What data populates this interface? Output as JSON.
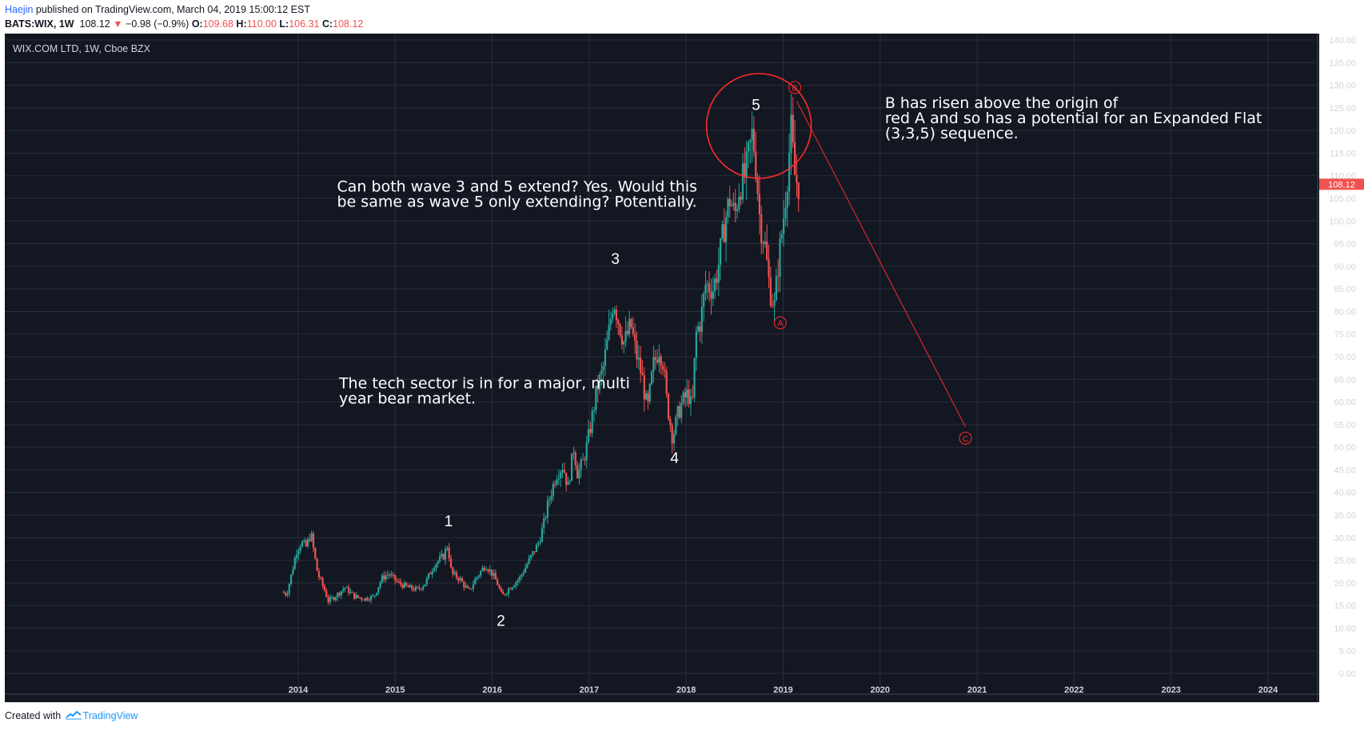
{
  "header": {
    "author": "Haejin",
    "published_text": " published on TradingView.com, March 04, 2019 15:00:12 EST",
    "symbol": "BATS:WIX, 1W",
    "price": "108.12",
    "change": "−0.98 (−0.9%)",
    "open_label": "O:",
    "open_value": "109.68",
    "high_label": "H:",
    "high_value": "110.00",
    "low_label": "L:",
    "low_value": "106.31",
    "close_label": "C:",
    "close_value": "108.12"
  },
  "footer": {
    "created_with": "Created with",
    "brand": "TradingView"
  },
  "chart_data": {
    "type": "candlestick",
    "instrument": "WIX.COM LTD, 1W, Cboe BZX",
    "last_price_label": "108.12",
    "last_price": 108.12,
    "xlim": [
      2013.0,
      2024.6
    ],
    "ylim": [
      -1.5,
      141.0
    ],
    "x_ticks": [
      "2014",
      "2015",
      "2016",
      "2017",
      "2018",
      "2019",
      "2020",
      "2021",
      "2022",
      "2023",
      "2024"
    ],
    "y_ticks": [
      "0.00",
      "5.00",
      "10.00",
      "15.00",
      "20.00",
      "25.00",
      "30.00",
      "35.00",
      "40.00",
      "45.00",
      "50.00",
      "55.00",
      "60.00",
      "65.00",
      "70.00",
      "75.00",
      "80.00",
      "85.00",
      "90.00",
      "95.00",
      "100.00",
      "105.00",
      "110.00",
      "115.00",
      "120.00",
      "125.00",
      "130.00",
      "135.00",
      "140.00"
    ],
    "price_path": [
      [
        2013.85,
        18
      ],
      [
        2013.9,
        17.5
      ],
      [
        2013.95,
        22
      ],
      [
        2014.0,
        27
      ],
      [
        2014.05,
        29
      ],
      [
        2014.1,
        28
      ],
      [
        2014.15,
        31
      ],
      [
        2014.18,
        27
      ],
      [
        2014.22,
        22
      ],
      [
        2014.28,
        19
      ],
      [
        2014.33,
        16
      ],
      [
        2014.4,
        17
      ],
      [
        2014.5,
        19
      ],
      [
        2014.6,
        17
      ],
      [
        2014.7,
        16.5
      ],
      [
        2014.8,
        17
      ],
      [
        2014.88,
        21
      ],
      [
        2014.95,
        22
      ],
      [
        2015.05,
        20
      ],
      [
        2015.15,
        19
      ],
      [
        2015.25,
        18.5
      ],
      [
        2015.33,
        20
      ],
      [
        2015.42,
        24
      ],
      [
        2015.52,
        26
      ],
      [
        2015.56,
        28.5
      ],
      [
        2015.6,
        22
      ],
      [
        2015.68,
        21
      ],
      [
        2015.78,
        18
      ],
      [
        2015.85,
        21
      ],
      [
        2015.95,
        24
      ],
      [
        2016.02,
        22
      ],
      [
        2016.07,
        20
      ],
      [
        2016.12,
        17
      ],
      [
        2016.2,
        19
      ],
      [
        2016.3,
        21
      ],
      [
        2016.4,
        25
      ],
      [
        2016.5,
        29
      ],
      [
        2016.55,
        33
      ],
      [
        2016.6,
        38
      ],
      [
        2016.68,
        44
      ],
      [
        2016.75,
        46
      ],
      [
        2016.8,
        41
      ],
      [
        2016.86,
        50
      ],
      [
        2016.9,
        44
      ],
      [
        2016.96,
        47
      ],
      [
        2017.02,
        53
      ],
      [
        2017.1,
        63
      ],
      [
        2017.16,
        67
      ],
      [
        2017.22,
        75
      ],
      [
        2017.27,
        83
      ],
      [
        2017.32,
        78
      ],
      [
        2017.38,
        73
      ],
      [
        2017.45,
        77
      ],
      [
        2017.5,
        71
      ],
      [
        2017.56,
        66
      ],
      [
        2017.62,
        58
      ],
      [
        2017.68,
        68
      ],
      [
        2017.74,
        72
      ],
      [
        2017.78,
        69
      ],
      [
        2017.82,
        60
      ],
      [
        2017.88,
        52
      ],
      [
        2017.93,
        57
      ],
      [
        2017.98,
        60
      ],
      [
        2018.04,
        62
      ],
      [
        2018.08,
        58
      ],
      [
        2018.12,
        75
      ],
      [
        2018.17,
        78
      ],
      [
        2018.22,
        86
      ],
      [
        2018.3,
        85
      ],
      [
        2018.35,
        90
      ],
      [
        2018.42,
        100
      ],
      [
        2018.47,
        105
      ],
      [
        2018.52,
        101
      ],
      [
        2018.57,
        108
      ],
      [
        2018.63,
        110
      ],
      [
        2018.7,
        119
      ],
      [
        2018.73,
        115
      ],
      [
        2018.78,
        100
      ],
      [
        2018.83,
        95
      ],
      [
        2018.88,
        85
      ],
      [
        2018.93,
        81
      ],
      [
        2018.97,
        91
      ],
      [
        2019.02,
        100
      ],
      [
        2019.07,
        112
      ],
      [
        2019.1,
        120
      ],
      [
        2019.14,
        110
      ],
      [
        2019.17,
        108.12
      ]
    ],
    "wave_labels": [
      {
        "text": "1",
        "x": 2015.55,
        "y": 32.5
      },
      {
        "text": "2",
        "x": 2016.09,
        "y": 10.5
      },
      {
        "text": "3",
        "x": 2017.27,
        "y": 90.5
      },
      {
        "text": "4",
        "x": 2017.88,
        "y": 46.5
      },
      {
        "text": "5",
        "x": 2018.72,
        "y": 124.5
      }
    ],
    "correction_points": [
      {
        "text": "A",
        "x": 2018.97,
        "y": 77.5
      },
      {
        "text": "B",
        "x": 2019.12,
        "y": 129.5
      },
      {
        "text": "C",
        "x": 2020.88,
        "y": 52.0
      }
    ],
    "projection_line": [
      [
        2019.14,
        126.5
      ],
      [
        2020.88,
        54.5
      ]
    ],
    "highlight_circle": {
      "cx": 2018.75,
      "cy": 121.0,
      "r_years": 0.54
    },
    "annotations": [
      {
        "lines": [
          "Can both wave 3 and 5 extend? Yes. Would this",
          "be same as wave 5 only extending? Potentially."
        ],
        "x": 2014.4,
        "y": 106.5
      },
      {
        "lines": [
          "The tech sector is in for a major, multi",
          "year bear market."
        ],
        "x": 2014.42,
        "y": 63.0
      },
      {
        "lines": [
          "B has risen above the origin of",
          "red A and so has a potential for an Expanded Flat",
          "(3,3,5) sequence."
        ],
        "x": 2020.05,
        "y": 125.0
      }
    ],
    "colors": {
      "background": "#131722",
      "up": "#26a69a",
      "down": "#ef5350",
      "annotation": "#ff2a2a",
      "grid": "#2a2e39",
      "text": "#ffffff",
      "axis_text": "#d1d4dc"
    }
  }
}
